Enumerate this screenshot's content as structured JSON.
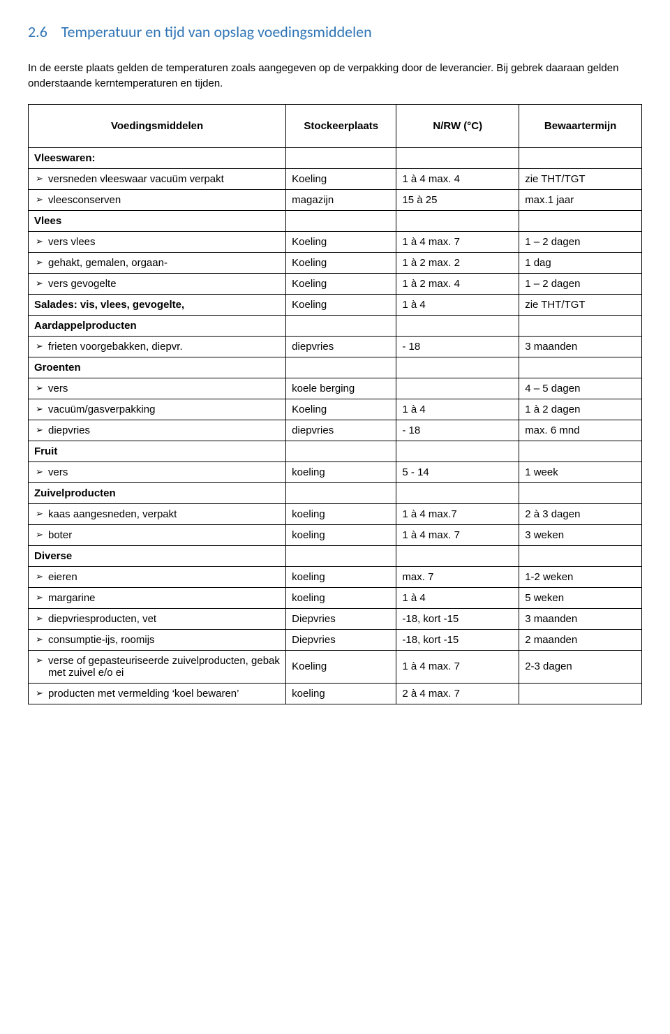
{
  "heading_color": "#2e74b5",
  "section_number": "2.6",
  "section_title": "Temperatuur en tijd van opslag voedingsmiddelen",
  "intro": "In de eerste plaats gelden de temperaturen zoals aangegeven op de verpakking door de leverancier. Bij gebrek daaraan gelden onderstaande kerntemperaturen en tijden.",
  "headers": {
    "c1": "Voedingsmiddelen",
    "c2": "Stockeerplaats",
    "c3": "N/RW (°C)",
    "c4": "Bewaartermijn"
  },
  "groups": [
    {
      "label": "Vleeswaren:",
      "rows": [
        {
          "label": "versneden vleeswaar vacuüm verpakt",
          "c2": "Koeling",
          "c3": "1 à 4 max. 4",
          "c4": "zie THT/TGT"
        },
        {
          "label": "vleesconserven",
          "c2": "magazijn",
          "c3": "15 à 25",
          "c4": "max.1 jaar"
        }
      ]
    },
    {
      "label": "Vlees",
      "rows": [
        {
          "label": "vers vlees",
          "c2": "Koeling",
          "c3": "1 à 4 max. 7",
          "c4": "1 – 2 dagen"
        },
        {
          "label": "gehakt, gemalen, orgaan-",
          "c2": "Koeling",
          "c3": "1 à 2 max. 2",
          "c4": "1 dag"
        },
        {
          "label": "vers gevogelte",
          "c2": "Koeling",
          "c3": "1 à 2 max. 4",
          "c4": "1 – 2 dagen"
        }
      ]
    },
    {
      "label": "Salades: vis, vlees, gevogelte,",
      "inline": true,
      "c2": "Koeling",
      "c3": "1 à 4",
      "c4": "zie THT/TGT"
    },
    {
      "label": "Aardappelproducten",
      "rows": [
        {
          "label": "frieten voorgebakken, diepvr.",
          "c2": "diepvries",
          "c3": "- 18",
          "c4": "3 maanden"
        }
      ]
    },
    {
      "label": "Groenten",
      "rows": [
        {
          "label": "vers",
          "c2": "koele berging",
          "c3": "",
          "c4": "4 – 5 dagen"
        },
        {
          "label": "vacuüm/gasverpakking",
          "c2": "Koeling",
          "c3": "1 à 4",
          "c4": "1 à 2 dagen"
        },
        {
          "label": "diepvries",
          "c2": "diepvries",
          "c3": "- 18",
          "c4": "max. 6 mnd"
        }
      ]
    },
    {
      "label": "Fruit",
      "rows": [
        {
          "label": "vers",
          "c2": "koeling",
          "c3": "5 - 14",
          "c4": "1 week"
        }
      ]
    },
    {
      "label": "Zuivelproducten",
      "rows": [
        {
          "label": "kaas aangesneden, verpakt",
          "c2": "koeling",
          "c3": "1 à 4 max.7",
          "c4": "2 à 3 dagen"
        },
        {
          "label": "boter",
          "c2": "koeling",
          "c3": "1 à 4 max. 7",
          "c4": "3 weken"
        }
      ]
    },
    {
      "label": "Diverse",
      "rows": [
        {
          "label": "eieren",
          "c2": "koeling",
          "c3": "max. 7",
          "c4": "1-2 weken"
        },
        {
          "label": "margarine",
          "c2": "koeling",
          "c3": "1 à 4",
          "c4": "5 weken"
        },
        {
          "label": "diepvriesproducten, vet",
          "c2": "Diepvries",
          "c3": "-18, kort -15",
          "c4": "3 maanden"
        },
        {
          "label": "consumptie-ijs, roomijs",
          "c2": "Diepvries",
          "c3": "-18, kort -15",
          "c4": "2 maanden"
        },
        {
          "label": "verse of gepasteuriseerde zuivelproducten, gebak met zuivel e/o ei",
          "c2": "Koeling",
          "c3": "1 à 4 max. 7",
          "c4": "2-3 dagen"
        },
        {
          "label": "producten met vermelding ‘koel bewaren’",
          "c2": "koeling",
          "c3": "2 à 4 max. 7",
          "c4": ""
        }
      ]
    }
  ]
}
